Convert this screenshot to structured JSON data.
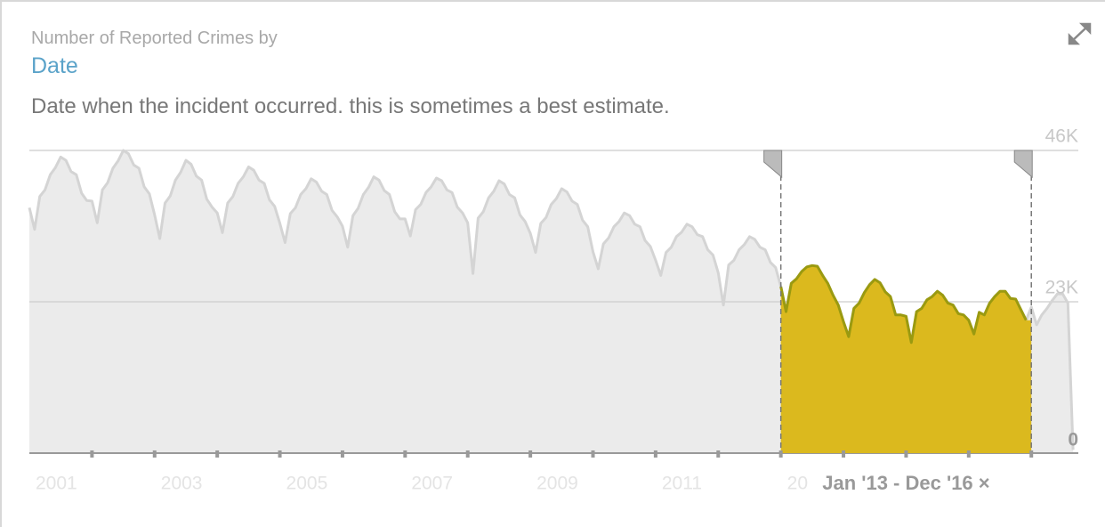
{
  "chart_data": {
    "type": "area",
    "pretitle": "Number of Reported Crimes by",
    "title": "Date",
    "subtitle": "Date when the incident occurred. this is sometimes a best estimate.",
    "x": [
      "2001-01",
      "2001-02",
      "2001-03",
      "2001-04",
      "2001-05",
      "2001-06",
      "2001-07",
      "2001-08",
      "2001-09",
      "2001-10",
      "2001-11",
      "2001-12",
      "2002-01",
      "2002-02",
      "2002-03",
      "2002-04",
      "2002-05",
      "2002-06",
      "2002-07",
      "2002-08",
      "2002-09",
      "2002-10",
      "2002-11",
      "2002-12",
      "2003-01",
      "2003-02",
      "2003-03",
      "2003-04",
      "2003-05",
      "2003-06",
      "2003-07",
      "2003-08",
      "2003-09",
      "2003-10",
      "2003-11",
      "2003-12",
      "2004-01",
      "2004-02",
      "2004-03",
      "2004-04",
      "2004-05",
      "2004-06",
      "2004-07",
      "2004-08",
      "2004-09",
      "2004-10",
      "2004-11",
      "2004-12",
      "2005-01",
      "2005-02",
      "2005-03",
      "2005-04",
      "2005-05",
      "2005-06",
      "2005-07",
      "2005-08",
      "2005-09",
      "2005-10",
      "2005-11",
      "2005-12",
      "2006-01",
      "2006-02",
      "2006-03",
      "2006-04",
      "2006-05",
      "2006-06",
      "2006-07",
      "2006-08",
      "2006-09",
      "2006-10",
      "2006-11",
      "2006-12",
      "2007-01",
      "2007-02",
      "2007-03",
      "2007-04",
      "2007-05",
      "2007-06",
      "2007-07",
      "2007-08",
      "2007-09",
      "2007-10",
      "2007-11",
      "2007-12",
      "2008-01",
      "2008-02",
      "2008-03",
      "2008-04",
      "2008-05",
      "2008-06",
      "2008-07",
      "2008-08",
      "2008-09",
      "2008-10",
      "2008-11",
      "2008-12",
      "2009-01",
      "2009-02",
      "2009-03",
      "2009-04",
      "2009-05",
      "2009-06",
      "2009-07",
      "2009-08",
      "2009-09",
      "2009-10",
      "2009-11",
      "2009-12",
      "2010-01",
      "2010-02",
      "2010-03",
      "2010-04",
      "2010-05",
      "2010-06",
      "2010-07",
      "2010-08",
      "2010-09",
      "2010-10",
      "2010-11",
      "2010-12",
      "2011-01",
      "2011-02",
      "2011-03",
      "2011-04",
      "2011-05",
      "2011-06",
      "2011-07",
      "2011-08",
      "2011-09",
      "2011-10",
      "2011-11",
      "2011-12",
      "2012-01",
      "2012-02",
      "2012-03",
      "2012-04",
      "2012-05",
      "2012-06",
      "2012-07",
      "2012-08",
      "2012-09",
      "2012-10",
      "2012-11",
      "2012-12",
      "2013-01",
      "2013-02",
      "2013-03",
      "2013-04",
      "2013-05",
      "2013-06",
      "2013-07",
      "2013-08",
      "2013-09",
      "2013-10",
      "2013-11",
      "2013-12",
      "2014-01",
      "2014-02",
      "2014-03",
      "2014-04",
      "2014-05",
      "2014-06",
      "2014-07",
      "2014-08",
      "2014-09",
      "2014-10",
      "2014-11",
      "2014-12",
      "2015-01",
      "2015-02",
      "2015-03",
      "2015-04",
      "2015-05",
      "2015-06",
      "2015-07",
      "2015-08",
      "2015-09",
      "2015-10",
      "2015-11",
      "2015-12",
      "2016-01",
      "2016-02",
      "2016-03",
      "2016-04",
      "2016-05",
      "2016-06",
      "2016-07",
      "2016-08",
      "2016-09",
      "2016-10",
      "2016-11",
      "2016-12",
      "2017-01",
      "2017-02",
      "2017-03",
      "2017-04",
      "2017-05",
      "2017-06",
      "2017-07",
      "2017-08",
      "2017-09"
    ],
    "values": [
      37300,
      34000,
      39000,
      40000,
      42300,
      43400,
      45000,
      44500,
      42800,
      42300,
      39500,
      38400,
      38300,
      35000,
      40000,
      41100,
      43300,
      44400,
      46000,
      45500,
      43800,
      43300,
      40500,
      39400,
      36200,
      32600,
      38000,
      39100,
      41500,
      42700,
      44500,
      43900,
      42100,
      41500,
      38600,
      37400,
      36500,
      33500,
      38000,
      39000,
      41000,
      42000,
      43500,
      43000,
      41500,
      41000,
      38500,
      37500,
      34900,
      32000,
      36400,
      37300,
      39300,
      40200,
      41700,
      41200,
      39800,
      39300,
      36900,
      35900,
      34500,
      31300,
      36100,
      37200,
      39300,
      40400,
      42000,
      41500,
      39900,
      39300,
      36700,
      35600,
      35600,
      33000,
      37000,
      37800,
      39600,
      40500,
      41800,
      41400,
      40000,
      39600,
      37400,
      36500,
      35000,
      27300,
      35700,
      36700,
      38800,
      39800,
      41400,
      40900,
      39300,
      38800,
      36200,
      35200,
      33400,
      30500,
      34900,
      35800,
      37800,
      38700,
      40200,
      39700,
      38300,
      37800,
      35400,
      34400,
      30600,
      28000,
      31800,
      32700,
      34400,
      35200,
      36500,
      36100,
      34800,
      34400,
      32300,
      31400,
      29300,
      27000,
      30500,
      31300,
      32900,
      33600,
      34800,
      34400,
      33200,
      32900,
      30900,
      30100,
      27400,
      22500,
      28600,
      29300,
      30900,
      31700,
      32900,
      32500,
      31300,
      30900,
      29000,
      28200,
      25300,
      21500,
      25800,
      26500,
      27600,
      28300,
      28500,
      28400,
      27000,
      25800,
      24000,
      22500,
      20000,
      17700,
      22000,
      22800,
      24400,
      25600,
      26400,
      25900,
      24500,
      23800,
      21000,
      21000,
      20800,
      16800,
      21500,
      22000,
      23300,
      23800,
      24600,
      24000,
      22800,
      22500,
      21200,
      21000,
      20200,
      18100,
      21400,
      21000,
      22800,
      23800,
      24600,
      24600,
      23500,
      23400,
      21800,
      20200,
      22200,
      19500,
      21000,
      22000,
      23200,
      24200,
      24200,
      22800,
      500
    ],
    "color": "#d4d4d4",
    "fill": "#ebebeb",
    "selection": {
      "start": "2013-01",
      "end": "2016-12",
      "label": "Jan '13 - Dec '16 ×",
      "color": "#9a9a10",
      "fill": "#dbb91e"
    },
    "xlim": [
      2001,
      2017.75
    ],
    "xticks": [
      2001,
      2003,
      2005,
      2007,
      2009,
      2011,
      2013
    ],
    "xminor_ticks": [
      2002,
      2003,
      2004,
      2005,
      2006,
      2007,
      2008,
      2009,
      2010,
      2011,
      2012,
      2013,
      2014,
      2015,
      2016,
      2017
    ],
    "ylim": [
      0,
      46000
    ],
    "yticks": [
      {
        "value": 0,
        "label": "0"
      },
      {
        "value": 23000,
        "label": "23K"
      },
      {
        "value": 46000,
        "label": "46K"
      }
    ],
    "grid": true
  }
}
